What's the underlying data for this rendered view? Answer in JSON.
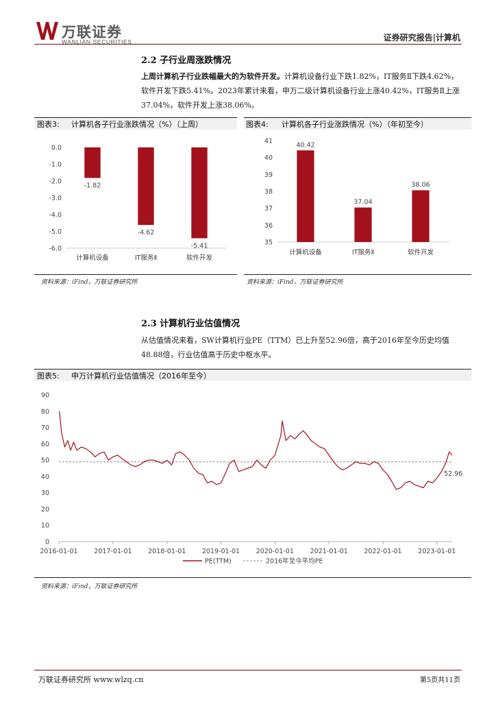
{
  "header": {
    "company_cn": "万联证券",
    "company_en": "WANLIAN SECURITIES",
    "report_type": "证券研究报告|计算机"
  },
  "section_2_2": {
    "title": "2.2  子行业周涨跌情况",
    "para_lead": "上周计算机子行业跌幅最大的为软件开发。",
    "para_rest": "计算机设备行业下跌1.82%，IT服务Ⅱ下跌4.62%，软件开发下跌5.41%。2023年累计来看，申万二级计算机设备行业上涨40.42%，IT服务Ⅱ上涨37.04%，软件开发上涨38.06%。"
  },
  "fig3": {
    "label": "图表3:",
    "title": "计算机各子行业涨跌情况（%）（上周）",
    "source": "资料来源：iFind，万联证券研究所"
  },
  "fig4": {
    "label": "图表4:",
    "title": "计算机各子行业涨跌情况（%）（年初至今）",
    "source": "资料来源：iFind，万联证券研究所"
  },
  "section_2_3": {
    "title": "2.3  计算机行业估值情况",
    "para": "从估值情况来看，SW计算机行业PE（TTM）已上升至52.96倍，高于2016年至今历史均值48.88倍，行业估值高于历史中枢水平。"
  },
  "fig5": {
    "label": "图表5:",
    "title": "申万计算机行业估值情况（2016年至今）",
    "source": "资料来源：iFind，万联证券研究所"
  },
  "footer": {
    "left": "万联证券研究所  www.wlzq.cn",
    "right": "第5页共11页"
  },
  "colors": {
    "bar": "#a3111c",
    "accent": "#7a0a16",
    "avg_line": "#888888"
  },
  "chart_data": [
    {
      "id": "fig3",
      "type": "bar",
      "categories": [
        "计算机设备",
        "IT服务Ⅱ",
        "软件开发"
      ],
      "values": [
        -1.82,
        -4.62,
        -5.41
      ],
      "value_labels": [
        "-1.82",
        "-4.62",
        "-5.41"
      ],
      "ylim": [
        -6.0,
        0.0
      ],
      "yticks": [
        "0.0",
        "-1.0",
        "-2.0",
        "-3.0",
        "-4.0",
        "-5.0",
        "-6.0"
      ],
      "grid": false
    },
    {
      "id": "fig4",
      "type": "bar",
      "categories": [
        "计算机设备",
        "IT服务Ⅱ",
        "软件开发"
      ],
      "values": [
        40.42,
        37.04,
        38.06
      ],
      "value_labels": [
        "40.42",
        "37.04",
        "38.06"
      ],
      "ylim": [
        35,
        41
      ],
      "yticks": [
        "41",
        "40",
        "39",
        "38",
        "37",
        "36",
        "35"
      ],
      "grid": false
    },
    {
      "id": "fig5",
      "type": "line",
      "x_start": "2016-01-01",
      "x_end": "2023-04-14",
      "xticks": [
        "2016-01-01",
        "2017-01-01",
        "2018-01-01",
        "2019-01-01",
        "2020-01-01",
        "2021-01-01",
        "2022-01-01",
        "2023-01-01"
      ],
      "ylim": [
        0,
        90
      ],
      "yticks": [
        "0",
        "10",
        "20",
        "30",
        "40",
        "50",
        "60",
        "70",
        "80",
        "90"
      ],
      "series": [
        {
          "name": "PE(TTM)",
          "points": [
            [
              "2016-01-04",
              80
            ],
            [
              "2016-01-20",
              66
            ],
            [
              "2016-02-10",
              58
            ],
            [
              "2016-03-01",
              62
            ],
            [
              "2016-03-20",
              56
            ],
            [
              "2016-04-10",
              61
            ],
            [
              "2016-05-01",
              56
            ],
            [
              "2016-06-01",
              58
            ],
            [
              "2016-07-01",
              57
            ],
            [
              "2016-08-01",
              55
            ],
            [
              "2016-09-01",
              52
            ],
            [
              "2016-10-01",
              54
            ],
            [
              "2016-11-01",
              55
            ],
            [
              "2016-12-01",
              50
            ],
            [
              "2017-01-01",
              52
            ],
            [
              "2017-02-01",
              53
            ],
            [
              "2017-03-01",
              51
            ],
            [
              "2017-04-01",
              49
            ],
            [
              "2017-05-01",
              47
            ],
            [
              "2017-06-01",
              46
            ],
            [
              "2017-07-01",
              47
            ],
            [
              "2017-08-01",
              49
            ],
            [
              "2017-09-01",
              50
            ],
            [
              "2017-10-01",
              50
            ],
            [
              "2017-11-01",
              49
            ],
            [
              "2017-12-01",
              48
            ],
            [
              "2018-01-01",
              50
            ],
            [
              "2018-02-01",
              47
            ],
            [
              "2018-03-01",
              54
            ],
            [
              "2018-04-01",
              55
            ],
            [
              "2018-05-01",
              53
            ],
            [
              "2018-06-01",
              50
            ],
            [
              "2018-07-01",
              45
            ],
            [
              "2018-08-01",
              42
            ],
            [
              "2018-09-01",
              41
            ],
            [
              "2018-10-01",
              36
            ],
            [
              "2018-11-01",
              37
            ],
            [
              "2018-12-01",
              35
            ],
            [
              "2019-01-01",
              36
            ],
            [
              "2019-02-01",
              42
            ],
            [
              "2019-03-01",
              48
            ],
            [
              "2019-04-01",
              50
            ],
            [
              "2019-05-01",
              43
            ],
            [
              "2019-06-01",
              44
            ],
            [
              "2019-07-01",
              45
            ],
            [
              "2019-08-01",
              46
            ],
            [
              "2019-09-01",
              50
            ],
            [
              "2019-10-01",
              47
            ],
            [
              "2019-11-01",
              45
            ],
            [
              "2019-12-01",
              50
            ],
            [
              "2020-01-01",
              53
            ],
            [
              "2020-02-10",
              65
            ],
            [
              "2020-02-20",
              74
            ],
            [
              "2020-03-15",
              62
            ],
            [
              "2020-04-15",
              65
            ],
            [
              "2020-05-15",
              63
            ],
            [
              "2020-06-15",
              66
            ],
            [
              "2020-07-10",
              68
            ],
            [
              "2020-08-01",
              66
            ],
            [
              "2020-09-01",
              62
            ],
            [
              "2020-10-01",
              60
            ],
            [
              "2020-11-01",
              58
            ],
            [
              "2020-12-01",
              57
            ],
            [
              "2021-01-01",
              53
            ],
            [
              "2021-02-01",
              49
            ],
            [
              "2021-03-01",
              46
            ],
            [
              "2021-04-01",
              44
            ],
            [
              "2021-05-01",
              45
            ],
            [
              "2021-06-01",
              47
            ],
            [
              "2021-07-01",
              49
            ],
            [
              "2021-08-01",
              48
            ],
            [
              "2021-09-01",
              48
            ],
            [
              "2021-10-01",
              47
            ],
            [
              "2021-11-01",
              49
            ],
            [
              "2021-12-01",
              48
            ],
            [
              "2022-01-01",
              44
            ],
            [
              "2022-02-01",
              41
            ],
            [
              "2022-03-01",
              37
            ],
            [
              "2022-04-01",
              32
            ],
            [
              "2022-05-01",
              33
            ],
            [
              "2022-06-01",
              36
            ],
            [
              "2022-07-01",
              37
            ],
            [
              "2022-08-01",
              35
            ],
            [
              "2022-09-01",
              34
            ],
            [
              "2022-10-01",
              33
            ],
            [
              "2022-11-01",
              37
            ],
            [
              "2022-12-01",
              36
            ],
            [
              "2023-01-01",
              39
            ],
            [
              "2023-02-01",
              43
            ],
            [
              "2023-03-01",
              48
            ],
            [
              "2023-03-25",
              55
            ],
            [
              "2023-04-14",
              53
            ]
          ]
        },
        {
          "name": "2016年至今平均PE",
          "value": 48.88
        }
      ],
      "end_label": "52.96",
      "legend_position": "bottom-left"
    }
  ]
}
